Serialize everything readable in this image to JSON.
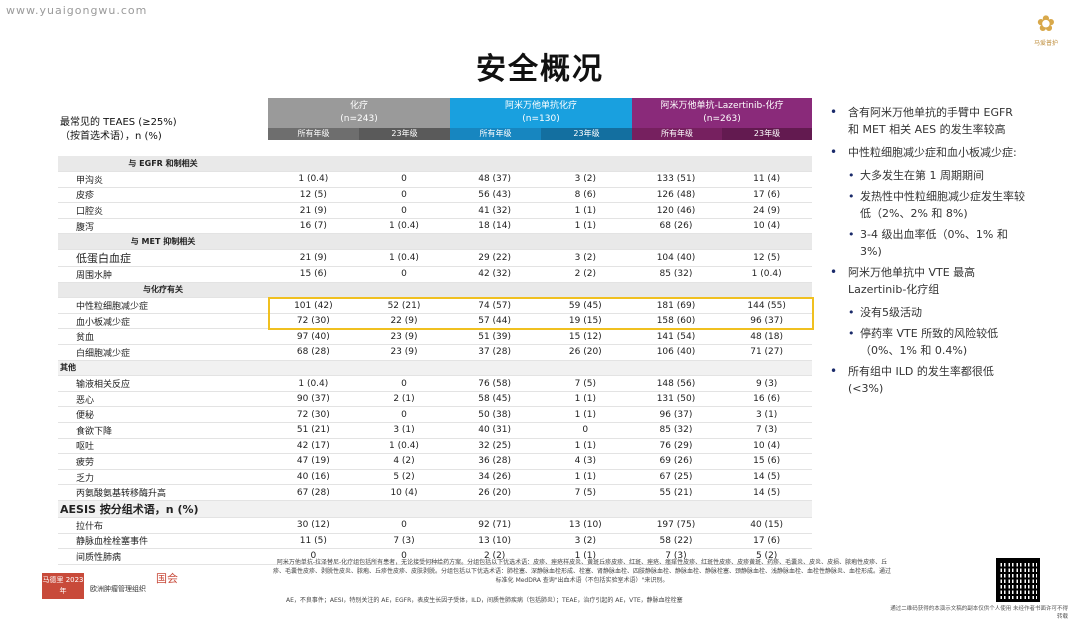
{
  "watermark": "www.yuaigongwu.com",
  "logo_tr_text": "马爱普护",
  "title": "安全概况",
  "table": {
    "row_header_line1": "最常见的 TEAES (≥25%)",
    "row_header_line2": "（按首选术语），n (%)",
    "groups": [
      {
        "name": "化疗",
        "n": "(n=243)",
        "sub1": "所有年级",
        "sub2": "23年级"
      },
      {
        "name": "阿米万他单抗化疗",
        "n": "(n=130)",
        "sub1": "所有年级",
        "sub2": "23年级"
      },
      {
        "name": "阿米万他单抗-Lazertinib-化疗",
        "n": "(n=263)",
        "sub1": "所有年级",
        "sub2": "23年级"
      }
    ],
    "rows": [
      {
        "type": "cat",
        "label": "与 EGFR 和制相关"
      },
      {
        "label": "甲沟炎",
        "v": [
          "1 (0.4)",
          "0",
          "48 (37)",
          "3 (2)",
          "133 (51)",
          "11 (4)"
        ]
      },
      {
        "label": "皮疹",
        "v": [
          "12 (5)",
          "0",
          "56 (43)",
          "8 (6)",
          "126 (48)",
          "17 (6)"
        ]
      },
      {
        "label": "口腔炎",
        "v": [
          "21 (9)",
          "0",
          "41 (32)",
          "1 (1)",
          "120 (46)",
          "24 (9)"
        ]
      },
      {
        "label": "腹泻",
        "v": [
          "16 (7)",
          "1 (0.4)",
          "18 (14)",
          "1 (1)",
          "68 (26)",
          "10 (4)"
        ]
      },
      {
        "type": "cat",
        "label": "与 MET 抑制相关"
      },
      {
        "label": "低蛋白血症",
        "big": true,
        "v": [
          "21 (9)",
          "1 (0.4)",
          "29 (22)",
          "3 (2)",
          "104 (40)",
          "12 (5)"
        ]
      },
      {
        "label": "周围水肿",
        "v": [
          "15 (6)",
          "0",
          "42 (32)",
          "2 (2)",
          "85 (32)",
          "1 (0.4)"
        ]
      },
      {
        "type": "cat",
        "label": "与化疗有关"
      },
      {
        "label": "中性粒细胞减少症",
        "v": [
          "101 (42)",
          "52 (21)",
          "74 (57)",
          "59 (45)",
          "181 (69)",
          "144 (55)"
        ]
      },
      {
        "label": "血小板减少症",
        "v": [
          "72 (30)",
          "22 (9)",
          "57 (44)",
          "19 (15)",
          "158 (60)",
          "96 (37)"
        ]
      },
      {
        "label": "贫血",
        "v": [
          "97 (40)",
          "23 (9)",
          "51 (39)",
          "15 (12)",
          "141 (54)",
          "48 (18)"
        ]
      },
      {
        "label": "白细胞减少症",
        "v": [
          "68 (28)",
          "23 (9)",
          "37 (28)",
          "26 (20)",
          "106 (40)",
          "71 (27)"
        ]
      },
      {
        "type": "other",
        "label": "其他"
      },
      {
        "label": "输液相关反应",
        "v": [
          "1 (0.4)",
          "0",
          "76 (58)",
          "7 (5)",
          "148 (56)",
          "9 (3)"
        ]
      },
      {
        "label": "恶心",
        "v": [
          "90 (37)",
          "2 (1)",
          "58 (45)",
          "1 (1)",
          "131 (50)",
          "16 (6)"
        ]
      },
      {
        "label": "便秘",
        "v": [
          "72 (30)",
          "0",
          "50 (38)",
          "1 (1)",
          "96 (37)",
          "3 (1)"
        ]
      },
      {
        "label": "食欲下降",
        "v": [
          "51 (21)",
          "3 (1)",
          "40 (31)",
          "0",
          "85 (32)",
          "7 (3)"
        ]
      },
      {
        "label": "呕吐",
        "v": [
          "42 (17)",
          "1 (0.4)",
          "32 (25)",
          "1 (1)",
          "76 (29)",
          "10 (4)"
        ]
      },
      {
        "label": "疲劳",
        "v": [
          "47 (19)",
          "4 (2)",
          "36 (28)",
          "4 (3)",
          "69 (26)",
          "15 (6)"
        ]
      },
      {
        "label": "乏力",
        "v": [
          "40 (16)",
          "5 (2)",
          "34 (26)",
          "1 (1)",
          "67 (25)",
          "14 (5)"
        ]
      },
      {
        "label": "丙氨酸氨基转移酶升高",
        "v": [
          "67 (28)",
          "10 (4)",
          "26 (20)",
          "7 (5)",
          "55 (21)",
          "14 (5)"
        ]
      },
      {
        "type": "other2",
        "label": "AESIS 按分组术语，n (%)"
      },
      {
        "label": "拉什布",
        "v": [
          "30 (12)",
          "0",
          "92 (71)",
          "13 (10)",
          "197 (75)",
          "40 (15)"
        ]
      },
      {
        "label": "静脉血栓栓塞事件",
        "v": [
          "11 (5)",
          "7 (3)",
          "13 (10)",
          "3 (2)",
          "58 (22)",
          "17 (6)"
        ]
      },
      {
        "label": "间质性肺病",
        "v": [
          "0",
          "0",
          "2 (2)",
          "1 (1)",
          "7 (3)",
          "5 (2)"
        ]
      }
    ]
  },
  "bullets": [
    {
      "t": "b",
      "text": "含有阿米万他单抗的手臂中 EGFR 和 MET 相关 AES 的发生率较高"
    },
    {
      "t": "b",
      "text": "中性粒细胞减少症和血小板减少症:"
    },
    {
      "t": "s",
      "text": "大多发生在第 1 周期期间"
    },
    {
      "t": "s",
      "text": "发热性中性粒细胞减少症发生率较低（2%、2% 和 8%)"
    },
    {
      "t": "s",
      "text": "3-4 级出血率低（0%、1% 和 3%)"
    },
    {
      "t": "b",
      "text": "阿米万他单抗中 VTE 最高 Lazertinib-化疗组"
    },
    {
      "t": "s",
      "text": "没有5级活动"
    },
    {
      "t": "s",
      "text": "停药率 VTE 所致的风险较低（0%、1% 和 0.4%)"
    },
    {
      "t": "b",
      "text": "所有组中 ILD 的发生率都很低 (<3%)"
    }
  ],
  "footer": {
    "logo_text": "马德里 2023年",
    "org": "欧洲肿瘤管理组织",
    "conf": "国会",
    "footnote": "阿米万他单抗-拉泽替尼-化疗组包括所有患者，无论接受何种给药方案。分组包括以下优选术语：皮疹、痤疮样皮炎、黄斑丘疹皮疹、红斑、痤疮、瘙痒性皮疹、红斑性皮疹、皮疹黄斑、药疹、毛囊炎、皮炎、皮损、脓疱性皮疹、丘疹、毛囊性皮疹、剥脱性皮炎、脓疱、丘疹性皮疹、皮肤剥脱。分组包括以下优选术语：肺栓塞、深静脉血栓形成、栓塞、肾静脉血栓、四肢静脉血栓、静脉血栓、静脉栓塞、颈静脉血栓、浅静脉血栓、血栓性静脉炎、血栓形成。通过标准化 MedDRA 查询\"出血术语（不包括实验室术语）\"来识别。",
    "abbr": "AE，不良事件；AESI，特别关注的 AE，EGFR，表皮生长因子受体，ILD，间质性肺疾病（包括肺炎）；TEAE，治疗引起的 AE，VTE，静脉血栓栓塞",
    "qr_note": "通过二维码获得的本演示文稿的副本仅供个人使用 未经作者书面许可不得转载"
  }
}
